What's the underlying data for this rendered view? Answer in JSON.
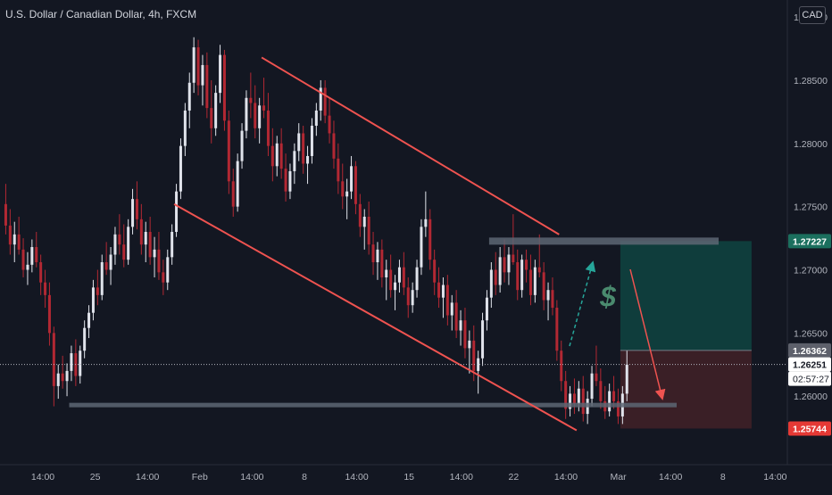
{
  "header": {
    "title": "U.S. Dollar / Canadian Dollar, 4h, FXCM",
    "currency_button": "CAD"
  },
  "colors": {
    "background": "#131722",
    "up_candle": "#e0e3eb",
    "down_candle": "#b22833",
    "channel": "#ef5350",
    "levels": "#5d6673",
    "profit_zone": "#0f3d3c",
    "loss_zone": "#3a1f26",
    "profit_arrow": "#26a69a",
    "loss_arrow": "#ef5350",
    "price_text": "#d1d4dc"
  },
  "chart_data": {
    "type": "candlestick",
    "title": "U.S. Dollar / Canadian Dollar, 4h, FXCM",
    "ylim": [
      1.2555,
      1.2905
    ],
    "y_ticks": [
      {
        "value": 1.29,
        "label": "1.29000"
      },
      {
        "value": 1.285,
        "label": "1.28500"
      },
      {
        "value": 1.28,
        "label": "1.28000"
      },
      {
        "value": 1.275,
        "label": "1.27500"
      },
      {
        "value": 1.27,
        "label": "1.27000"
      },
      {
        "value": 1.265,
        "label": "1.26500"
      },
      {
        "value": 1.26,
        "label": "1.26000"
      }
    ],
    "x_ticks": [
      "14:00",
      "25",
      "14:00",
      "Feb",
      "14:00",
      "8",
      "14:00",
      "15",
      "14:00",
      "22",
      "14:00",
      "Mar",
      "14:00",
      "8",
      "14:00"
    ],
    "price_labels": [
      {
        "value": 1.27227,
        "label": "1.27227",
        "kind": "target"
      },
      {
        "value": 1.26362,
        "label": "1.26362",
        "kind": "entry"
      },
      {
        "value": 1.26251,
        "label": "1.26251",
        "kind": "last"
      },
      {
        "value": 1.25744,
        "label": "1.25744",
        "kind": "stop"
      }
    ],
    "countdown": "02:57:27",
    "last_price": 1.26251,
    "resistance_level": 1.27227,
    "support_level": 1.2593,
    "channel": {
      "upper": [
        {
          "bar": 59,
          "price": 1.2868
        },
        {
          "bar": 127,
          "price": 1.2728
        }
      ],
      "lower": [
        {
          "bar": 39,
          "price": 1.2752
        },
        {
          "bar": 131,
          "price": 1.2573
        }
      ]
    },
    "position": {
      "entry": 1.26362,
      "target": 1.27227,
      "stop": 1.25744,
      "start_bar": 141,
      "end_bar": 171,
      "annotation": "$"
    },
    "candles": [
      [
        1.2752,
        1.2768,
        1.2728,
        1.2735
      ],
      [
        1.2735,
        1.2748,
        1.2712,
        1.272
      ],
      [
        1.272,
        1.2738,
        1.2706,
        1.2728
      ],
      [
        1.2728,
        1.2742,
        1.2712,
        1.2716
      ],
      [
        1.2716,
        1.2725,
        1.2694,
        1.27
      ],
      [
        1.27,
        1.2714,
        1.2688,
        1.2704
      ],
      [
        1.2704,
        1.2724,
        1.2698,
        1.2718
      ],
      [
        1.2718,
        1.273,
        1.2702,
        1.2706
      ],
      [
        1.2706,
        1.2712,
        1.268,
        1.269
      ],
      [
        1.269,
        1.27,
        1.267,
        1.268
      ],
      [
        1.268,
        1.269,
        1.264,
        1.265
      ],
      [
        1.265,
        1.2655,
        1.2592,
        1.2608
      ],
      [
        1.2608,
        1.2625,
        1.2598,
        1.2618
      ],
      [
        1.2618,
        1.2632,
        1.2606,
        1.2612
      ],
      [
        1.2612,
        1.2626,
        1.26,
        1.262
      ],
      [
        1.262,
        1.264,
        1.2612,
        1.2634
      ],
      [
        1.2634,
        1.2645,
        1.2608,
        1.2616
      ],
      [
        1.2616,
        1.264,
        1.261,
        1.2636
      ],
      [
        1.2636,
        1.266,
        1.263,
        1.2654
      ],
      [
        1.2654,
        1.2672,
        1.2646,
        1.2666
      ],
      [
        1.2666,
        1.2692,
        1.266,
        1.2686
      ],
      [
        1.2686,
        1.27,
        1.2672,
        1.268
      ],
      [
        1.268,
        1.2712,
        1.2676,
        1.2706
      ],
      [
        1.2706,
        1.2722,
        1.2696,
        1.27
      ],
      [
        1.27,
        1.2718,
        1.2688,
        1.2712
      ],
      [
        1.2712,
        1.2734,
        1.2704,
        1.2728
      ],
      [
        1.2728,
        1.2744,
        1.2712,
        1.272
      ],
      [
        1.272,
        1.2736,
        1.2702,
        1.2708
      ],
      [
        1.2708,
        1.274,
        1.2704,
        1.2734
      ],
      [
        1.2734,
        1.2764,
        1.2728,
        1.2756
      ],
      [
        1.2756,
        1.277,
        1.2732,
        1.274
      ],
      [
        1.274,
        1.2752,
        1.2712,
        1.272
      ],
      [
        1.272,
        1.2738,
        1.2706,
        1.273
      ],
      [
        1.273,
        1.2742,
        1.2704,
        1.271
      ],
      [
        1.271,
        1.2726,
        1.2694,
        1.2716
      ],
      [
        1.2716,
        1.273,
        1.2692,
        1.2698
      ],
      [
        1.2698,
        1.2708,
        1.268,
        1.269
      ],
      [
        1.269,
        1.2716,
        1.2684,
        1.271
      ],
      [
        1.271,
        1.2736,
        1.2704,
        1.273
      ],
      [
        1.273,
        1.2768,
        1.2726,
        1.2762
      ],
      [
        1.2762,
        1.2804,
        1.2756,
        1.2798
      ],
      [
        1.2798,
        1.2832,
        1.279,
        1.2826
      ],
      [
        1.2826,
        1.2856,
        1.2812,
        1.2848
      ],
      [
        1.2848,
        1.2884,
        1.284,
        1.2876
      ],
      [
        1.2876,
        1.2882,
        1.2838,
        1.2846
      ],
      [
        1.2846,
        1.287,
        1.283,
        1.2862
      ],
      [
        1.2862,
        1.2872,
        1.282,
        1.2828
      ],
      [
        1.2828,
        1.285,
        1.28,
        1.2812
      ],
      [
        1.2812,
        1.2846,
        1.2806,
        1.284
      ],
      [
        1.284,
        1.2878,
        1.2832,
        1.287
      ],
      [
        1.287,
        1.2874,
        1.281,
        1.2818
      ],
      [
        1.2818,
        1.2826,
        1.276,
        1.277
      ],
      [
        1.277,
        1.278,
        1.2742,
        1.275
      ],
      [
        1.275,
        1.2792,
        1.2746,
        1.2786
      ],
      [
        1.2786,
        1.2816,
        1.278,
        1.281
      ],
      [
        1.281,
        1.2842,
        1.2804,
        1.2836
      ],
      [
        1.2836,
        1.2856,
        1.282,
        1.2832
      ],
      [
        1.2832,
        1.2846,
        1.2804,
        1.2812
      ],
      [
        1.2812,
        1.2836,
        1.28,
        1.283
      ],
      [
        1.283,
        1.2852,
        1.282,
        1.2826
      ],
      [
        1.2826,
        1.284,
        1.279,
        1.2798
      ],
      [
        1.2798,
        1.2812,
        1.277,
        1.2782
      ],
      [
        1.2782,
        1.2806,
        1.2774,
        1.28
      ],
      [
        1.28,
        1.2812,
        1.2772,
        1.278
      ],
      [
        1.278,
        1.2792,
        1.2754,
        1.2762
      ],
      [
        1.2762,
        1.2784,
        1.2756,
        1.2778
      ],
      [
        1.2778,
        1.28,
        1.2768,
        1.2794
      ],
      [
        1.2794,
        1.2816,
        1.2786,
        1.2808
      ],
      [
        1.2808,
        1.2814,
        1.2776,
        1.2784
      ],
      [
        1.2784,
        1.2798,
        1.2768,
        1.279
      ],
      [
        1.279,
        1.282,
        1.2784,
        1.2814
      ],
      [
        1.2814,
        1.2832,
        1.2806,
        1.2826
      ],
      [
        1.2826,
        1.285,
        1.2818,
        1.2844
      ],
      [
        1.2844,
        1.285,
        1.2816,
        1.2822
      ],
      [
        1.2822,
        1.2836,
        1.28,
        1.2808
      ],
      [
        1.2808,
        1.2818,
        1.278,
        1.2788
      ],
      [
        1.2788,
        1.28,
        1.276,
        1.277
      ],
      [
        1.277,
        1.2784,
        1.2748,
        1.2758
      ],
      [
        1.2758,
        1.2772,
        1.274,
        1.2762
      ],
      [
        1.2762,
        1.279,
        1.2756,
        1.2782
      ],
      [
        1.2782,
        1.2786,
        1.2744,
        1.2752
      ],
      [
        1.2752,
        1.276,
        1.2726,
        1.2734
      ],
      [
        1.2734,
        1.2748,
        1.2716,
        1.2742
      ],
      [
        1.2742,
        1.2754,
        1.2712,
        1.272
      ],
      [
        1.272,
        1.273,
        1.2696,
        1.2706
      ],
      [
        1.2706,
        1.2722,
        1.2692,
        1.2716
      ],
      [
        1.2716,
        1.2724,
        1.2686,
        1.2694
      ],
      [
        1.2694,
        1.2708,
        1.2676,
        1.27
      ],
      [
        1.27,
        1.2712,
        1.2678,
        1.2684
      ],
      [
        1.2684,
        1.2696,
        1.2668,
        1.269
      ],
      [
        1.269,
        1.2708,
        1.2682,
        1.2702
      ],
      [
        1.2702,
        1.2714,
        1.268,
        1.2686
      ],
      [
        1.2686,
        1.2694,
        1.2662,
        1.2672
      ],
      [
        1.2672,
        1.269,
        1.2666,
        1.2684
      ],
      [
        1.2684,
        1.2708,
        1.2678,
        1.2702
      ],
      [
        1.2702,
        1.274,
        1.2696,
        1.2734
      ],
      [
        1.2734,
        1.2762,
        1.2726,
        1.274
      ],
      [
        1.274,
        1.2748,
        1.27,
        1.2708
      ],
      [
        1.2708,
        1.2716,
        1.268,
        1.269
      ],
      [
        1.269,
        1.2702,
        1.267,
        1.2678
      ],
      [
        1.2678,
        1.2694,
        1.2662,
        1.2688
      ],
      [
        1.2688,
        1.2696,
        1.2656,
        1.2664
      ],
      [
        1.2664,
        1.268,
        1.2652,
        1.2674
      ],
      [
        1.2674,
        1.2684,
        1.2646,
        1.2652
      ],
      [
        1.2652,
        1.2668,
        1.264,
        1.266
      ],
      [
        1.266,
        1.267,
        1.263,
        1.2638
      ],
      [
        1.2638,
        1.2652,
        1.2618,
        1.2644
      ],
      [
        1.2644,
        1.2656,
        1.2612,
        1.262
      ],
      [
        1.262,
        1.2636,
        1.2602,
        1.263
      ],
      [
        1.263,
        1.2666,
        1.2624,
        1.266
      ],
      [
        1.266,
        1.2684,
        1.2652,
        1.2678
      ],
      [
        1.2678,
        1.2706,
        1.267,
        1.27
      ],
      [
        1.27,
        1.2714,
        1.268,
        1.2688
      ],
      [
        1.2688,
        1.2718,
        1.2682,
        1.271
      ],
      [
        1.271,
        1.2724,
        1.269,
        1.2698
      ],
      [
        1.2698,
        1.2718,
        1.2688,
        1.2712
      ],
      [
        1.2712,
        1.2744,
        1.2704,
        1.2706
      ],
      [
        1.2706,
        1.2716,
        1.2676,
        1.2684
      ],
      [
        1.2684,
        1.2712,
        1.2678,
        1.2708
      ],
      [
        1.2708,
        1.2716,
        1.269,
        1.27
      ],
      [
        1.27,
        1.2712,
        1.2672,
        1.268
      ],
      [
        1.268,
        1.2708,
        1.2674,
        1.2702
      ],
      [
        1.2702,
        1.2728,
        1.2694,
        1.2698
      ],
      [
        1.2698,
        1.2706,
        1.2668,
        1.2676
      ],
      [
        1.2676,
        1.269,
        1.266,
        1.2684
      ],
      [
        1.2684,
        1.2694,
        1.2664,
        1.267
      ],
      [
        1.267,
        1.2676,
        1.2628,
        1.2636
      ],
      [
        1.2636,
        1.2644,
        1.2604,
        1.2612
      ],
      [
        1.2612,
        1.262,
        1.2582,
        1.259
      ],
      [
        1.259,
        1.2608,
        1.2584,
        1.2602
      ],
      [
        1.2602,
        1.2614,
        1.2586,
        1.2594
      ],
      [
        1.2594,
        1.2612,
        1.2588,
        1.2606
      ],
      [
        1.2606,
        1.2616,
        1.258,
        1.2586
      ],
      [
        1.2586,
        1.2604,
        1.2578,
        1.2598
      ],
      [
        1.2598,
        1.2624,
        1.2592,
        1.2618
      ],
      [
        1.2618,
        1.264,
        1.2608,
        1.2612
      ],
      [
        1.2612,
        1.2622,
        1.259,
        1.2596
      ],
      [
        1.2596,
        1.2608,
        1.2582,
        1.2588
      ],
      [
        1.2588,
        1.261,
        1.2584,
        1.2604
      ],
      [
        1.2604,
        1.2616,
        1.259,
        1.2596
      ],
      [
        1.2596,
        1.2606,
        1.2578,
        1.2584
      ],
      [
        1.2584,
        1.2608,
        1.2578,
        1.2602
      ],
      [
        1.2602,
        1.2636,
        1.2596,
        1.2625
      ]
    ]
  }
}
